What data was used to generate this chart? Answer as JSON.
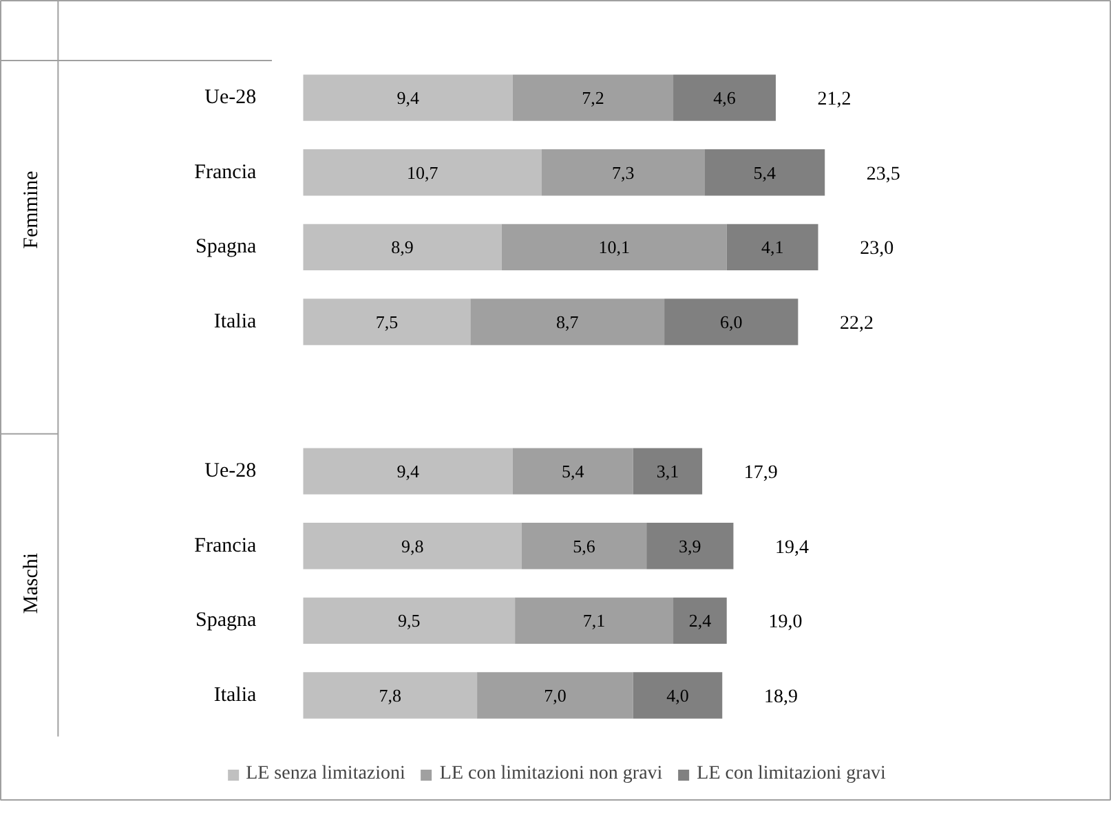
{
  "chart_data": {
    "type": "bar",
    "orientation": "horizontal",
    "stacked": true,
    "legend": "bottom",
    "categories": [
      "Ue-28",
      "Francia",
      "Spagna",
      "Italia",
      null,
      "Ue-28",
      "Francia",
      "Spagna",
      "Italia"
    ],
    "series": [
      {
        "name": "LE senza limitazioni",
        "color": "#c0c0c0",
        "values": [
          9.4,
          10.7,
          8.9,
          7.5,
          null,
          9.4,
          9.8,
          9.5,
          7.8
        ],
        "value_labels": [
          "9,4",
          "10,7",
          "8,9",
          "7,5",
          null,
          "9,4",
          "9,8",
          "9,5",
          "7,8"
        ]
      },
      {
        "name": "LE con limitazioni non gravi",
        "color": "#a0a0a0",
        "values": [
          7.2,
          7.3,
          10.1,
          8.7,
          null,
          5.4,
          5.6,
          7.1,
          7.0
        ],
        "value_labels": [
          "7,2",
          "7,3",
          "10,1",
          "8,7",
          null,
          "5,4",
          "5,6",
          "7,1",
          "7,0"
        ]
      },
      {
        "name": "LE con limitazioni gravi",
        "color": "#808080",
        "values": [
          4.6,
          5.4,
          4.1,
          6.0,
          null,
          3.1,
          3.9,
          2.4,
          4.0
        ],
        "value_labels": [
          "4,6",
          "5,4",
          "4,1",
          "6,0",
          null,
          "3,1",
          "3,9",
          "2,4",
          "4,0"
        ]
      }
    ],
    "totals": [
      "21,2",
      "23,5",
      "23,0",
      "22,2",
      null,
      "17,9",
      "19,4",
      "19,0",
      "18,9"
    ],
    "annotations": [
      "Femmine",
      "Maschi"
    ]
  }
}
